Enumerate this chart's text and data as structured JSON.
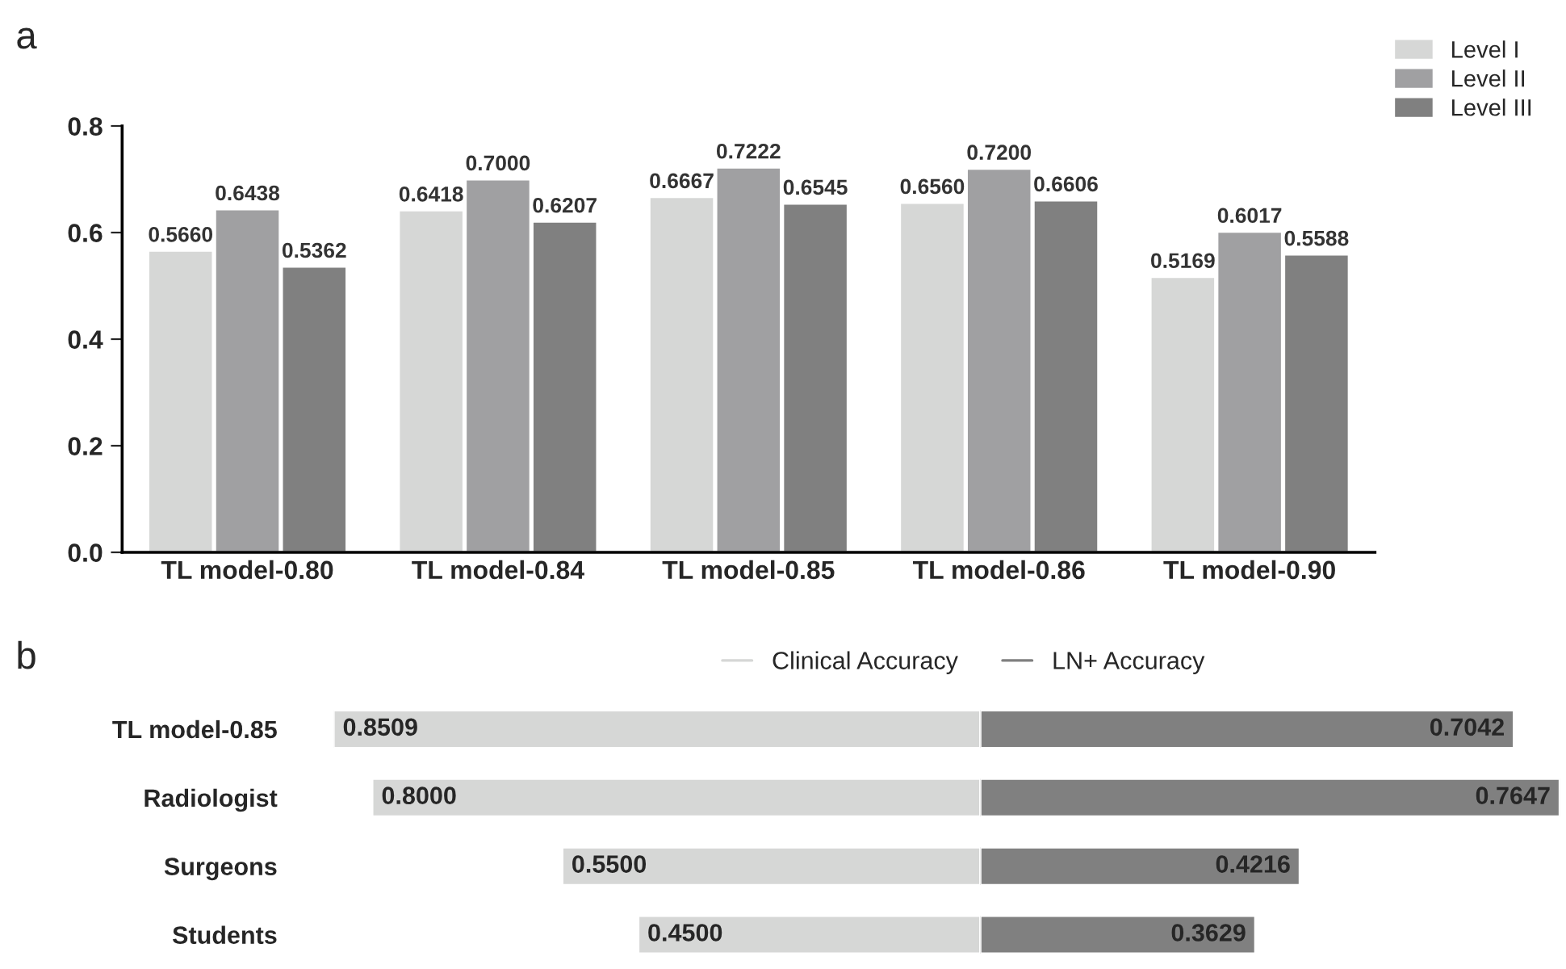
{
  "chart_data": [
    {
      "type": "bar",
      "annotations": [
        "a"
      ],
      "categories": [
        "TL model-0.80",
        "TL model-0.84",
        "TL model-0.85",
        "TL model-0.86",
        "TL model-0.90"
      ],
      "series": [
        {
          "name": "Level I",
          "color": "#d6d7d6",
          "values": [
            0.566,
            0.6418,
            0.6667,
            0.656,
            0.5169
          ],
          "value_labels": [
            "0.5660",
            "0.6418",
            "0.6667",
            "0.6560",
            "0.5169"
          ]
        },
        {
          "name": "Level II",
          "color": "#a0a0a2",
          "values": [
            0.6438,
            0.7,
            0.7222,
            0.72,
            0.6017
          ],
          "value_labels": [
            "0.6438",
            "0.7000",
            "0.7222",
            "0.7200",
            "0.6017"
          ]
        },
        {
          "name": "Level III",
          "color": "#808080",
          "values": [
            0.5362,
            0.6207,
            0.6545,
            0.6606,
            0.5588
          ],
          "value_labels": [
            "0.5362",
            "0.6207",
            "0.6545",
            "0.6606",
            "0.5588"
          ]
        }
      ],
      "ylim": [
        0,
        0.8
      ],
      "yticks": [
        {
          "value": 0,
          "label": "0.0"
        },
        {
          "value": 0.2,
          "label": "0.2"
        },
        {
          "value": 0.4,
          "label": "0.4"
        },
        {
          "value": 0.6,
          "label": "0.6"
        },
        {
          "value": 0.8,
          "label": "0.8"
        }
      ],
      "legend": "top right"
    },
    {
      "type": "bar",
      "orientation": "horizontal",
      "annotations": [
        "b"
      ],
      "categories": [
        "TL model-0.85",
        "Radiologist",
        "Surgeons",
        "Students"
      ],
      "series": [
        {
          "name": "Clinical Accuracy",
          "color": "#d6d7d6",
          "values": [
            0.8509,
            0.8,
            0.55,
            0.45
          ],
          "value_labels": [
            "0.8509",
            "0.8000",
            "0.5500",
            "0.4500"
          ]
        }
      ],
      "xlim": [
        0.8509,
        0
      ],
      "tick_labels": "y",
      "legend": "top right"
    },
    {
      "type": "bar",
      "orientation": "horizontal",
      "categories": [
        null,
        null,
        null,
        null
      ],
      "series": [
        {
          "name": "LN+ Accuracy",
          "color": "#808080",
          "values": [
            0.7042,
            0.7647,
            0.4216,
            0.3629
          ],
          "value_labels": [
            "0.7042",
            "0.7647",
            "0.4216",
            "0.3629"
          ]
        }
      ],
      "xlim": [
        0,
        0.7647
      ],
      "tick_labels": false,
      "legend": "top left"
    }
  ]
}
